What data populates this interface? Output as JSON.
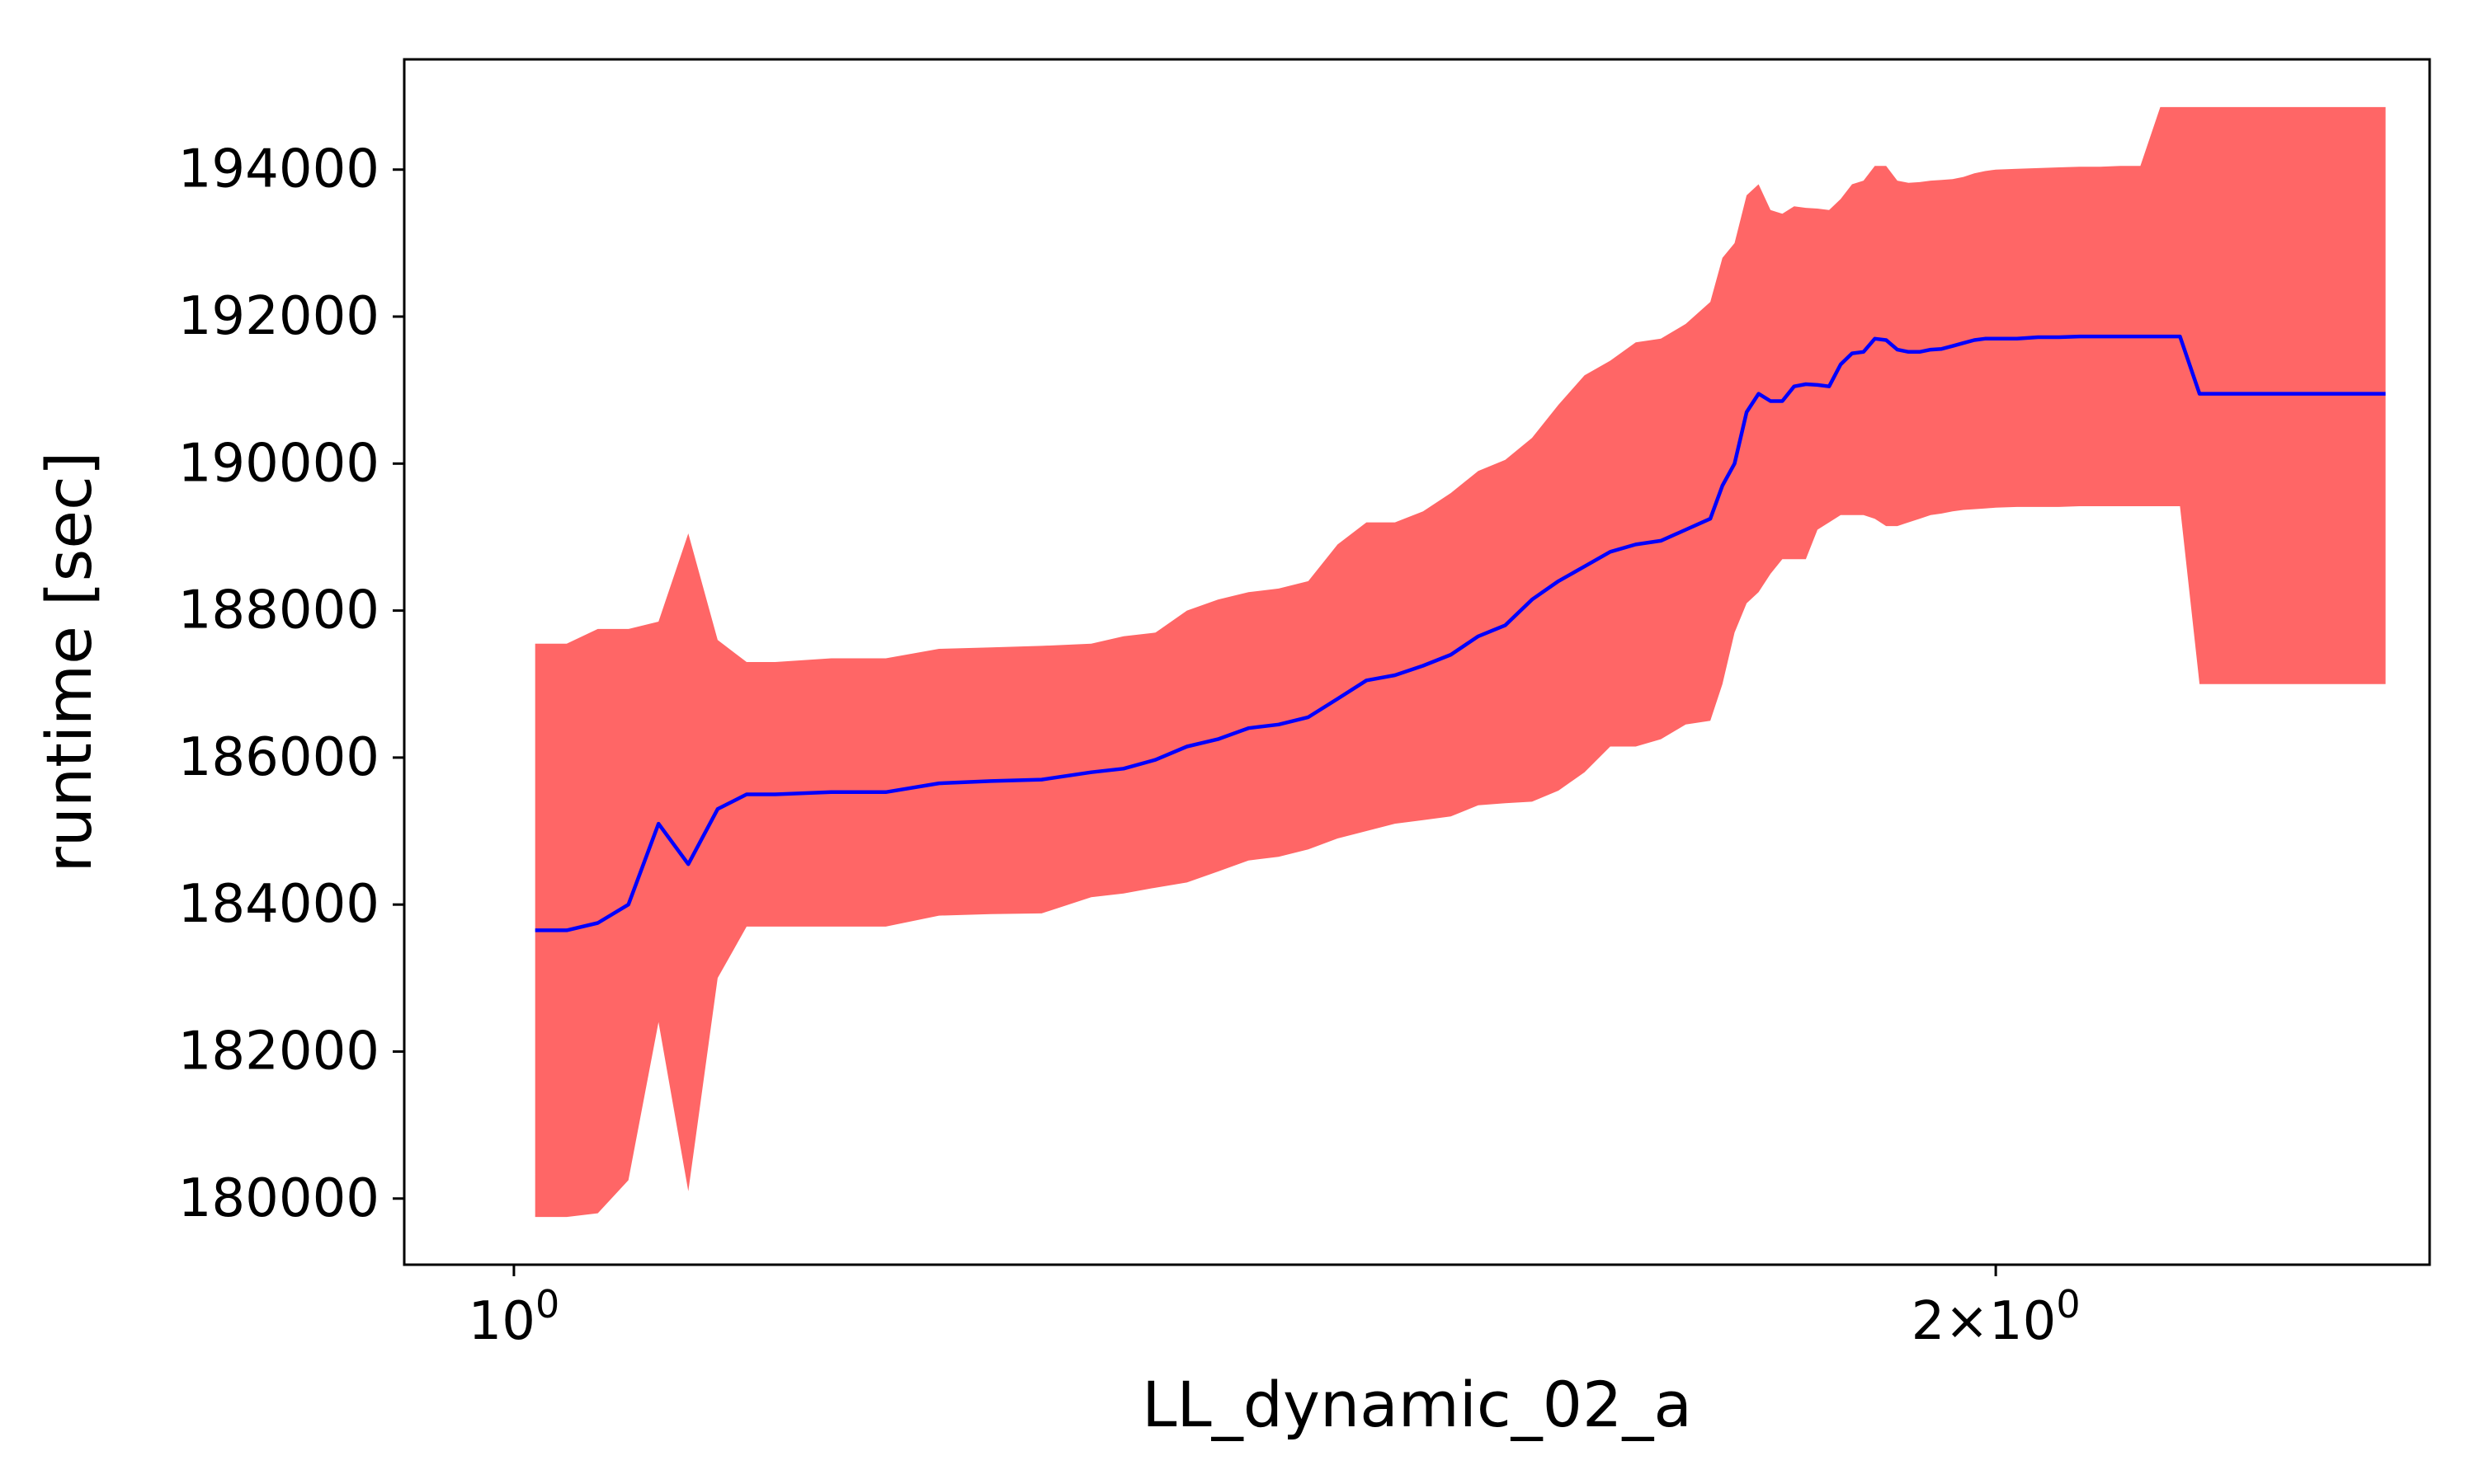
{
  "chart_data": {
    "type": "line",
    "title": "",
    "xlabel": "LL_dynamic_02_a",
    "ylabel": "runtime [sec]",
    "xscale": "log",
    "xlim": [
      0.95,
      2.45
    ],
    "ylim": [
      179100,
      195500
    ],
    "grid": false,
    "x_ticks": [
      {
        "value": 1,
        "base": "10",
        "exp": "0"
      },
      {
        "value": 2,
        "coef": "2",
        "times": "×",
        "base": "10",
        "exp": "0"
      }
    ],
    "y_ticks": [
      180000,
      182000,
      184000,
      186000,
      188000,
      190000,
      192000,
      194000
    ],
    "colors": {
      "line": "#0000ff",
      "band": "#ff6666"
    },
    "series": [
      {
        "x": [
          1.01,
          1.025,
          1.04,
          1.055,
          1.07,
          1.085,
          1.1,
          1.115,
          1.13,
          1.16,
          1.19,
          1.22,
          1.25,
          1.28,
          1.31,
          1.33,
          1.35,
          1.37,
          1.39,
          1.41,
          1.43,
          1.45,
          1.47,
          1.49,
          1.51,
          1.53,
          1.55,
          1.57,
          1.59,
          1.61,
          1.63,
          1.65,
          1.67,
          1.69,
          1.71,
          1.73,
          1.75,
          1.76,
          1.77,
          1.78,
          1.79,
          1.8,
          1.81,
          1.82,
          1.83,
          1.84,
          1.85,
          1.86,
          1.87,
          1.88,
          1.89,
          1.9,
          1.91,
          1.92,
          1.93,
          1.94,
          1.95,
          1.96,
          1.97,
          1.98,
          1.99,
          2.0,
          2.02,
          2.04,
          2.06,
          2.08,
          2.1,
          2.12,
          2.14,
          2.16,
          2.18,
          2.2,
          2.22,
          2.24,
          2.26,
          2.28,
          2.3,
          2.32,
          2.34,
          2.36,
          2.38,
          2.4
        ],
        "y": [
          183650,
          183650,
          183750,
          184000,
          185100,
          184550,
          185300,
          185500,
          185500,
          185530,
          185530,
          185650,
          185680,
          185700,
          185800,
          185850,
          185970,
          186150,
          186250,
          186400,
          186450,
          186550,
          186800,
          187050,
          187120,
          187250,
          187400,
          187650,
          187800,
          188150,
          188400,
          188600,
          188800,
          188900,
          188950,
          189100,
          189250,
          189700,
          190000,
          190700,
          190950,
          190850,
          190850,
          191050,
          191080,
          191070,
          191050,
          191350,
          191500,
          191520,
          191700,
          191680,
          191550,
          191520,
          191520,
          191550,
          191560,
          191600,
          191640,
          191680,
          191700,
          191700,
          191700,
          191720,
          191720,
          191730,
          191730,
          191730,
          191730,
          191730,
          191730,
          190950,
          190950,
          190950,
          190950,
          190950,
          190950,
          190950,
          190950,
          190950,
          190950,
          190950
        ],
        "lower": [
          179750,
          179750,
          179800,
          180250,
          182400,
          180100,
          183000,
          183700,
          183700,
          183700,
          183700,
          183850,
          183870,
          183880,
          184100,
          184150,
          184230,
          184300,
          184450,
          184600,
          184650,
          184750,
          184900,
          185000,
          185100,
          185150,
          185200,
          185350,
          185380,
          185400,
          185550,
          185800,
          186150,
          186150,
          186250,
          186450,
          186500,
          187000,
          187700,
          188100,
          188250,
          188500,
          188700,
          188700,
          188700,
          189100,
          189200,
          189300,
          189300,
          189300,
          189250,
          189150,
          189150,
          189200,
          189250,
          189300,
          189320,
          189350,
          189370,
          189380,
          189390,
          189400,
          189410,
          189410,
          189410,
          189420,
          189420,
          189420,
          189420,
          189420,
          189420,
          187000,
          187000,
          187000,
          187000,
          187000,
          187000,
          187000,
          187000,
          187000,
          187000,
          187000
        ],
        "upper": [
          187550,
          187550,
          187750,
          187750,
          187850,
          189050,
          187600,
          187300,
          187300,
          187350,
          187350,
          187480,
          187500,
          187520,
          187550,
          187650,
          187700,
          188000,
          188150,
          188250,
          188300,
          188400,
          188900,
          189200,
          189200,
          189350,
          189600,
          189900,
          190050,
          190350,
          190800,
          191200,
          191400,
          191650,
          191700,
          191900,
          192200,
          192800,
          193000,
          193650,
          193800,
          193450,
          193400,
          193500,
          193480,
          193470,
          193450,
          193600,
          193800,
          193850,
          194050,
          194050,
          193850,
          193820,
          193830,
          193850,
          193860,
          193870,
          193900,
          193950,
          193980,
          194000,
          194010,
          194020,
          194030,
          194040,
          194040,
          194050,
          194050,
          194850,
          194850,
          194850,
          194850,
          194850,
          194850,
          194850,
          194850,
          194850,
          194850,
          194850,
          194850,
          194850
        ]
      }
    ]
  }
}
